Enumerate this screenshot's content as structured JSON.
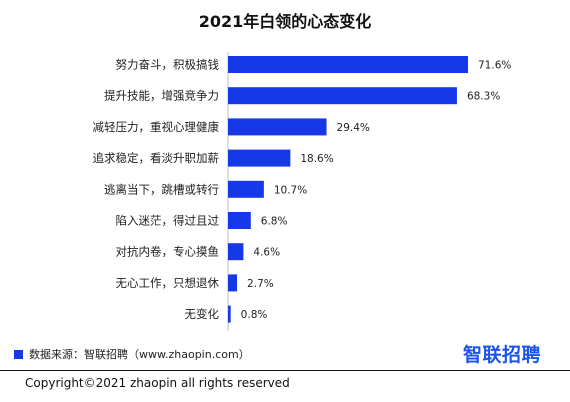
{
  "chart_data": {
    "type": "bar",
    "orientation": "horizontal",
    "title": "2021年白领的心态变化",
    "categories": [
      "努力奋斗，积极搞钱",
      "提升技能，增强竞争力",
      "减轻压力，重视心理健康",
      "追求稳定，看淡升职加薪",
      "逃离当下，跳槽或转行",
      "陷入迷茫，得过且过",
      "对抗内卷，专心摸鱼",
      "无心工作，只想退休",
      "无变化"
    ],
    "values": [
      71.6,
      68.3,
      29.4,
      18.6,
      10.7,
      6.8,
      4.6,
      2.7,
      0.8
    ],
    "value_labels": [
      "71.6%",
      "68.3%",
      "29.4%",
      "18.6%",
      "10.7%",
      "6.8%",
      "4.6%",
      "2.7%",
      "0.8%"
    ],
    "xlim": [
      0,
      100
    ],
    "bar_color": "#1638e6",
    "grid": false
  },
  "source_text": "数据来源：智联招聘（www.zhaopin.com）",
  "logo_text": "智联招聘",
  "copyright": "Copyright©2021 zhaopin all rights reserved"
}
